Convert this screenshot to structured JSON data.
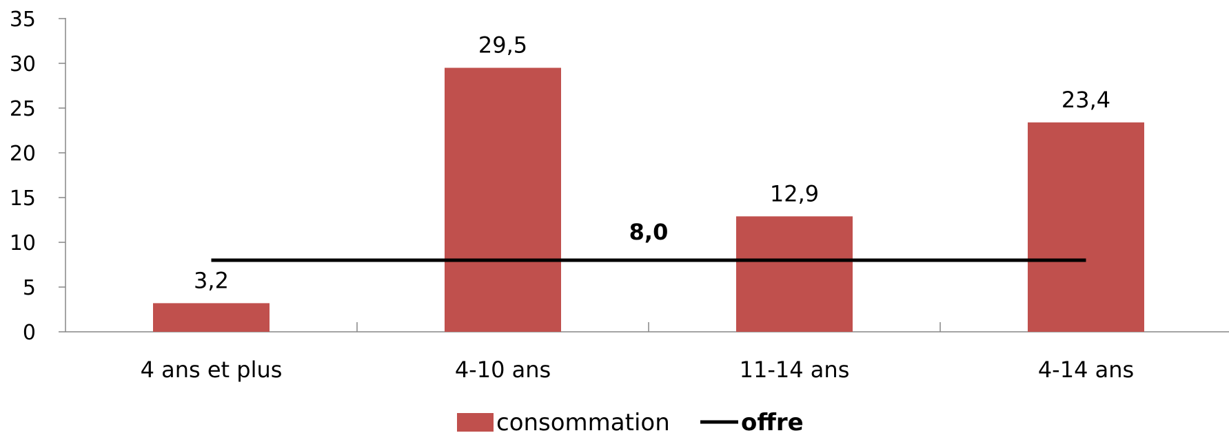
{
  "chart_data": {
    "type": "bar",
    "categories": [
      "4 ans et plus",
      "4-10 ans",
      "11-14 ans",
      "4-14 ans"
    ],
    "series": [
      {
        "name": "consommation",
        "type": "bar",
        "values": [
          3.2,
          29.5,
          12.9,
          23.4
        ],
        "data_labels": [
          "3,2",
          "29,5",
          "12,9",
          "23,4"
        ],
        "color": "#C0504D"
      },
      {
        "name": "offre",
        "type": "line",
        "values": [
          8.0,
          8.0,
          8.0,
          8.0
        ],
        "data_label": "8,0",
        "color": "#000000"
      }
    ],
    "ylim": [
      0,
      35
    ],
    "yticks": [
      0,
      5,
      10,
      15,
      20,
      25,
      30,
      35
    ],
    "grid": false,
    "legend_position": "bottom"
  }
}
